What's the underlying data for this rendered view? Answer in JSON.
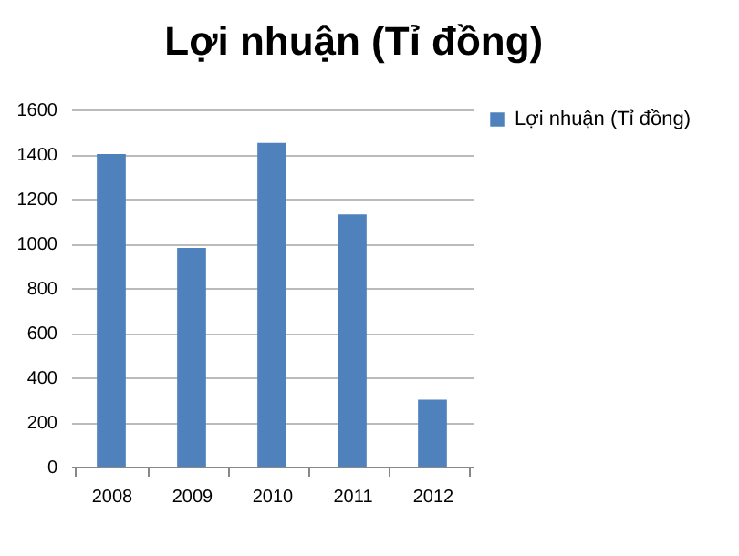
{
  "chart_data": {
    "type": "bar",
    "title": "Lợi nhuận (Tỉ đồng)",
    "categories": [
      "2008",
      "2009",
      "2010",
      "2011",
      "2012"
    ],
    "series": [
      {
        "name": "Lợi nhuận (Tỉ đồng)",
        "color": "#4f81bd",
        "values": [
          1400,
          980,
          1450,
          1130,
          300
        ]
      }
    ],
    "ylim": [
      0,
      1600
    ],
    "yticks": [
      0,
      200,
      400,
      600,
      800,
      1000,
      1200,
      1400,
      1600
    ],
    "grid": "y",
    "legend": "right"
  }
}
